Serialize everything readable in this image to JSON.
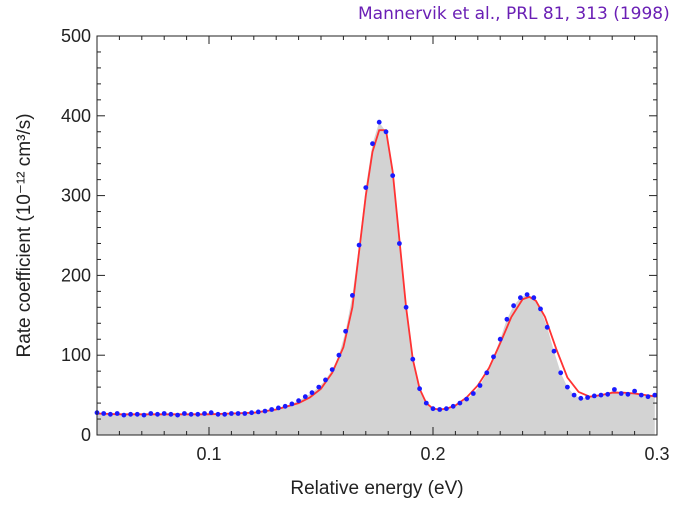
{
  "citation": "Mannervik et al., PRL 81, 313 (1998)",
  "colors": {
    "fill": "#d3d3d3",
    "fit_line": "#ff3333",
    "markers": "#1a1aff",
    "citation": "#6a1fb5"
  },
  "chart_data": {
    "type": "line",
    "xlabel": "Relative energy (eV)",
    "ylabel": "Rate coefficient (10⁻¹² cm³/s)",
    "xlim": [
      0.05,
      0.3
    ],
    "ylim": [
      0,
      500
    ],
    "x_ticks": [
      0.1,
      0.2,
      0.3
    ],
    "x_tick_labels": [
      "0.1",
      "0.2",
      "0.3"
    ],
    "y_ticks": [
      0,
      100,
      200,
      300,
      400,
      500
    ],
    "y_tick_labels": [
      "0",
      "100",
      "200",
      "300",
      "400",
      "500"
    ],
    "grid": false,
    "series": [
      {
        "style": "markers",
        "x": [
          0.05,
          0.053,
          0.056,
          0.059,
          0.062,
          0.065,
          0.068,
          0.071,
          0.074,
          0.077,
          0.08,
          0.083,
          0.086,
          0.089,
          0.092,
          0.095,
          0.098,
          0.101,
          0.104,
          0.107,
          0.11,
          0.113,
          0.116,
          0.119,
          0.122,
          0.125,
          0.128,
          0.131,
          0.134,
          0.137,
          0.14,
          0.143,
          0.146,
          0.149,
          0.152,
          0.155,
          0.158,
          0.161,
          0.164,
          0.167,
          0.17,
          0.173,
          0.176,
          0.179,
          0.182,
          0.185,
          0.188,
          0.191,
          0.194,
          0.197,
          0.2,
          0.203,
          0.206,
          0.209,
          0.212,
          0.215,
          0.218,
          0.221,
          0.224,
          0.227,
          0.23,
          0.233,
          0.236,
          0.239,
          0.242,
          0.245,
          0.248,
          0.251,
          0.254,
          0.257,
          0.26,
          0.263,
          0.266,
          0.269,
          0.272,
          0.275,
          0.278,
          0.281,
          0.284,
          0.287,
          0.29,
          0.293,
          0.296,
          0.299
        ],
        "y": [
          28,
          27,
          26,
          27,
          25,
          26,
          26,
          25,
          27,
          26,
          27,
          26,
          25,
          27,
          26,
          26,
          27,
          28,
          26,
          26,
          27,
          27,
          27,
          28,
          29,
          30,
          32,
          34,
          36,
          39,
          43,
          48,
          53,
          60,
          69,
          82,
          100,
          130,
          175,
          238,
          310,
          365,
          392,
          380,
          325,
          240,
          160,
          95,
          58,
          40,
          33,
          32,
          33,
          36,
          40,
          45,
          52,
          62,
          78,
          98,
          120,
          145,
          162,
          172,
          176,
          172,
          158,
          135,
          105,
          78,
          60,
          50,
          46,
          47,
          49,
          50,
          51,
          57,
          52,
          51,
          55,
          50,
          48,
          50
        ]
      },
      {
        "style": "line",
        "x": [
          0.05,
          0.06,
          0.07,
          0.08,
          0.09,
          0.1,
          0.11,
          0.12,
          0.13,
          0.14,
          0.145,
          0.15,
          0.155,
          0.16,
          0.164,
          0.167,
          0.17,
          0.173,
          0.176,
          0.179,
          0.182,
          0.185,
          0.188,
          0.191,
          0.194,
          0.197,
          0.2,
          0.203,
          0.206,
          0.21,
          0.215,
          0.22,
          0.225,
          0.23,
          0.235,
          0.24,
          0.243,
          0.246,
          0.25,
          0.255,
          0.26,
          0.265,
          0.27,
          0.275,
          0.28,
          0.285,
          0.29,
          0.295,
          0.3
        ],
        "y": [
          27,
          26,
          26,
          26,
          26,
          26,
          27,
          28,
          32,
          40,
          47,
          58,
          78,
          110,
          160,
          230,
          300,
          355,
          382,
          382,
          330,
          245,
          160,
          95,
          58,
          40,
          33,
          32,
          33,
          37,
          47,
          62,
          84,
          115,
          148,
          170,
          173,
          168,
          148,
          108,
          72,
          54,
          48,
          50,
          53,
          53,
          52,
          50,
          48
        ]
      }
    ]
  }
}
